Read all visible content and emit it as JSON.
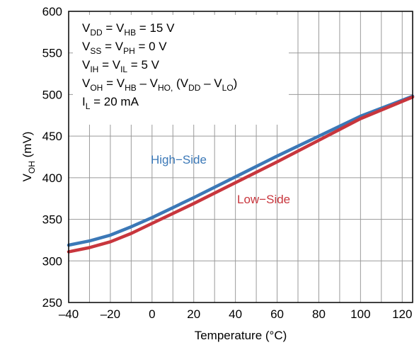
{
  "chart_data": {
    "type": "line",
    "xlabel": "Temperature (°C)",
    "ylabel": {
      "main": "V",
      "sub": "OH",
      "unit": " (mV)"
    },
    "xlim": [
      -40,
      125
    ],
    "ylim": [
      250,
      600
    ],
    "x_ticks": [
      -40,
      -20,
      0,
      20,
      40,
      60,
      80,
      100,
      120
    ],
    "y_ticks": [
      250,
      300,
      350,
      400,
      450,
      500,
      550,
      600
    ],
    "x_tick_labels": [
      "–40",
      "–20",
      "0",
      "20",
      "40",
      "60",
      "80",
      "100",
      "120"
    ],
    "y_tick_labels": [
      "250",
      "300",
      "350",
      "400",
      "450",
      "500",
      "550",
      "600"
    ],
    "x_grid_step": 10,
    "y_grid_step": 50,
    "grid": true,
    "conditions": [
      [
        {
          "t": "V"
        },
        {
          "t": "DD",
          "s": "sub"
        },
        {
          "t": " = V"
        },
        {
          "t": "HB",
          "s": "sub"
        },
        {
          "t": " = 15 V"
        }
      ],
      [
        {
          "t": "V"
        },
        {
          "t": "SS",
          "s": "sub"
        },
        {
          "t": " = V"
        },
        {
          "t": "PH",
          "s": "sub"
        },
        {
          "t": " = 0 V"
        }
      ],
      [
        {
          "t": "V"
        },
        {
          "t": "IH",
          "s": "sub"
        },
        {
          "t": " = V"
        },
        {
          "t": "IL",
          "s": "sub"
        },
        {
          "t": " = 5 V"
        }
      ],
      [
        {
          "t": "V"
        },
        {
          "t": "OH",
          "s": "sub"
        },
        {
          "t": " = V"
        },
        {
          "t": "HB",
          "s": "sub"
        },
        {
          "t": " – V"
        },
        {
          "t": "HO,",
          "s": "sub"
        },
        {
          "t": " (V"
        },
        {
          "t": "DD",
          "s": "sub"
        },
        {
          "t": " – V"
        },
        {
          "t": "LO",
          "s": "sub"
        },
        {
          "t": ")"
        }
      ],
      [
        {
          "t": "I"
        },
        {
          "t": "L",
          "s": "sub"
        },
        {
          "t": " = 20 mA"
        }
      ]
    ],
    "series": [
      {
        "name": "High−Side",
        "color": "#3b78b7",
        "x": [
          -40,
          -30,
          -20,
          -10,
          0,
          20,
          40,
          60,
          80,
          100,
          125
        ],
        "y": [
          319,
          324,
          331,
          341,
          352,
          376,
          401,
          426,
          450,
          474,
          498
        ]
      },
      {
        "name": "Low−Side",
        "color": "#c8363d",
        "x": [
          -40,
          -30,
          -20,
          -10,
          0,
          20,
          40,
          60,
          80,
          100,
          125
        ],
        "y": [
          311,
          316,
          323,
          333,
          345,
          369,
          394,
          419,
          445,
          471,
          497
        ]
      }
    ]
  }
}
